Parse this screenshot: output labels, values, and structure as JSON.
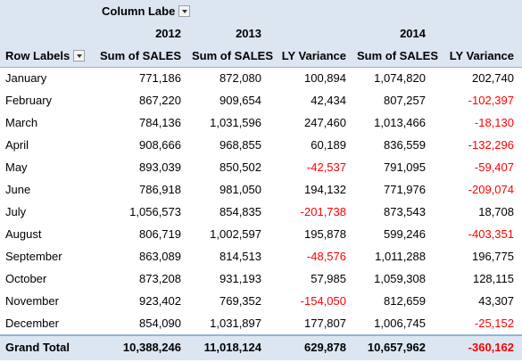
{
  "pivot": {
    "column_labels": "Column Labe",
    "row_labels": "Row Labels",
    "years": [
      "2012",
      "2013",
      "2014"
    ],
    "headers": [
      "Sum of SALES",
      "Sum of SALES",
      "LY Variance",
      "Sum of SALES",
      "LY Variance"
    ],
    "rows": [
      {
        "month": "January",
        "v": [
          "771,186",
          "872,080",
          "100,894",
          "1,074,820",
          "202,740"
        ],
        "neg": [
          false,
          false,
          false,
          false,
          false
        ]
      },
      {
        "month": "February",
        "v": [
          "867,220",
          "909,654",
          "42,434",
          "807,257",
          "-102,397"
        ],
        "neg": [
          false,
          false,
          false,
          false,
          true
        ]
      },
      {
        "month": "March",
        "v": [
          "784,136",
          "1,031,596",
          "247,460",
          "1,013,466",
          "-18,130"
        ],
        "neg": [
          false,
          false,
          false,
          false,
          true
        ]
      },
      {
        "month": "April",
        "v": [
          "908,666",
          "968,855",
          "60,189",
          "836,559",
          "-132,296"
        ],
        "neg": [
          false,
          false,
          false,
          false,
          true
        ]
      },
      {
        "month": "May",
        "v": [
          "893,039",
          "850,502",
          "-42,537",
          "791,095",
          "-59,407"
        ],
        "neg": [
          false,
          false,
          true,
          false,
          true
        ]
      },
      {
        "month": "June",
        "v": [
          "786,918",
          "981,050",
          "194,132",
          "771,976",
          "-209,074"
        ],
        "neg": [
          false,
          false,
          false,
          false,
          true
        ]
      },
      {
        "month": "July",
        "v": [
          "1,056,573",
          "854,835",
          "-201,738",
          "873,543",
          "18,708"
        ],
        "neg": [
          false,
          false,
          true,
          false,
          false
        ]
      },
      {
        "month": "August",
        "v": [
          "806,719",
          "1,002,597",
          "195,878",
          "599,246",
          "-403,351"
        ],
        "neg": [
          false,
          false,
          false,
          false,
          true
        ]
      },
      {
        "month": "September",
        "v": [
          "863,089",
          "814,513",
          "-48,576",
          "1,011,288",
          "196,775"
        ],
        "neg": [
          false,
          false,
          true,
          false,
          false
        ]
      },
      {
        "month": "October",
        "v": [
          "873,208",
          "931,193",
          "57,985",
          "1,059,308",
          "128,115"
        ],
        "neg": [
          false,
          false,
          false,
          false,
          false
        ]
      },
      {
        "month": "November",
        "v": [
          "923,402",
          "769,352",
          "-154,050",
          "812,659",
          "43,307"
        ],
        "neg": [
          false,
          false,
          true,
          false,
          false
        ]
      },
      {
        "month": "December",
        "v": [
          "854,090",
          "1,031,897",
          "177,807",
          "1,006,745",
          "-25,152"
        ],
        "neg": [
          false,
          false,
          false,
          false,
          true
        ]
      }
    ],
    "total": {
      "label": "Grand Total",
      "v": [
        "10,388,246",
        "11,018,124",
        "629,878",
        "10,657,962",
        "-360,162"
      ],
      "neg": [
        false,
        false,
        false,
        false,
        true
      ]
    }
  },
  "colors": {
    "header_bg": "#dce6f1",
    "header_line": "#95b3d7",
    "negative": "#ff0000"
  }
}
